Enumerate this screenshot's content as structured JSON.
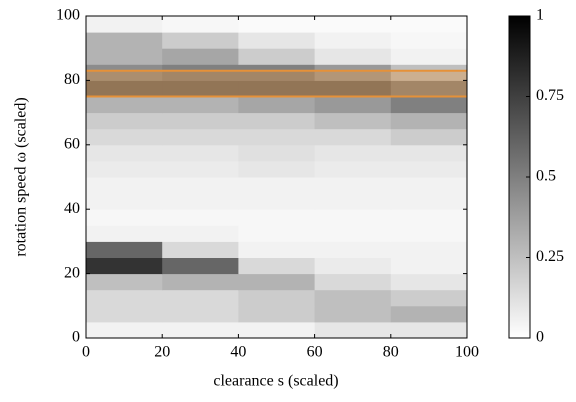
{
  "chart_data": {
    "type": "heatmap",
    "xlabel": "clearance s (scaled)",
    "ylabel": "rotation speed ω (scaled)",
    "xlim": [
      0,
      100
    ],
    "xticks": [
      0,
      20,
      40,
      60,
      80,
      100
    ],
    "ylim": [
      0,
      100
    ],
    "yticks": [
      0,
      20,
      40,
      60,
      80,
      100
    ],
    "zlim": [
      0,
      1
    ],
    "zticks": [
      0,
      0.25,
      0.5,
      0.75,
      1
    ],
    "x_bins": [
      0,
      20,
      40,
      60,
      80,
      100
    ],
    "y_bins": [
      0,
      5,
      10,
      15,
      20,
      25,
      30,
      35,
      40,
      45,
      50,
      55,
      60,
      65,
      70,
      75,
      80,
      85,
      90,
      95,
      100
    ],
    "z": [
      [
        0.05,
        0.05,
        0.05,
        0.1,
        0.1
      ],
      [
        0.15,
        0.15,
        0.2,
        0.25,
        0.3
      ],
      [
        0.15,
        0.15,
        0.2,
        0.25,
        0.2
      ],
      [
        0.25,
        0.3,
        0.3,
        0.15,
        0.1
      ],
      [
        0.8,
        0.6,
        0.15,
        0.08,
        0.05
      ],
      [
        0.6,
        0.15,
        0.05,
        0.05,
        0.05
      ],
      [
        0.05,
        0.05,
        0.03,
        0.03,
        0.03
      ],
      [
        0.03,
        0.03,
        0.03,
        0.03,
        0.03
      ],
      [
        0.05,
        0.05,
        0.05,
        0.05,
        0.05
      ],
      [
        0.05,
        0.05,
        0.05,
        0.05,
        0.05
      ],
      [
        0.08,
        0.08,
        0.1,
        0.08,
        0.08
      ],
      [
        0.1,
        0.1,
        0.12,
        0.1,
        0.1
      ],
      [
        0.15,
        0.15,
        0.15,
        0.15,
        0.2
      ],
      [
        0.2,
        0.2,
        0.2,
        0.25,
        0.3
      ],
      [
        0.3,
        0.3,
        0.35,
        0.4,
        0.5
      ],
      [
        0.6,
        0.6,
        0.6,
        0.6,
        0.5
      ],
      [
        0.45,
        0.5,
        0.5,
        0.4,
        0.25
      ],
      [
        0.3,
        0.35,
        0.2,
        0.1,
        0.05
      ],
      [
        0.3,
        0.2,
        0.1,
        0.05,
        0.03
      ],
      [
        0.05,
        0.03,
        0.02,
        0.02,
        0.02
      ]
    ],
    "band": {
      "ylim": [
        75,
        83
      ],
      "color": "#e69138"
    }
  }
}
